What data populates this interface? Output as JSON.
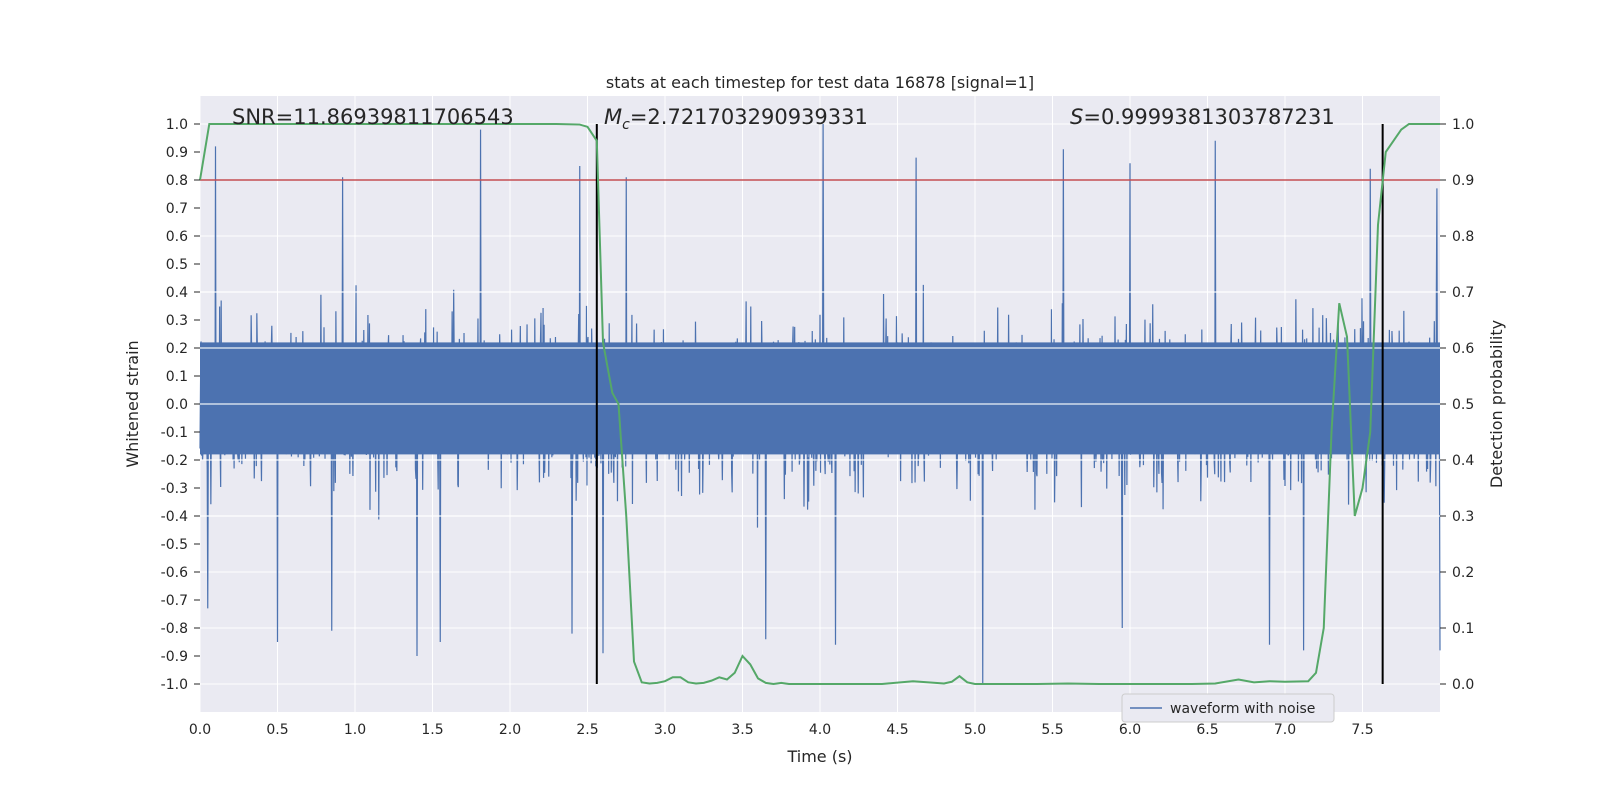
{
  "chart_data": {
    "type": "line",
    "title": "stats at each timestep for test data 16878 [signal=1]",
    "xlabel": "Time (s)",
    "ylabel": "Whitened strain",
    "y2label": "Detection probability",
    "xlim": [
      0.0,
      8.0
    ],
    "ylim": [
      -1.1,
      1.1
    ],
    "y2lim": [
      -0.05,
      1.05
    ],
    "xticks": [
      "0.0",
      "0.5",
      "1.0",
      "1.5",
      "2.0",
      "2.5",
      "3.0",
      "3.5",
      "4.0",
      "4.5",
      "5.0",
      "5.5",
      "6.0",
      "6.5",
      "7.0",
      "7.5"
    ],
    "yticks": [
      "-1.0",
      "-0.9",
      "-0.8",
      "-0.7",
      "-0.6",
      "-0.5",
      "-0.4",
      "-0.3",
      "-0.2",
      "-0.1",
      "0.0",
      "0.1",
      "0.2",
      "0.3",
      "0.4",
      "0.5",
      "0.6",
      "0.7",
      "0.8",
      "0.9",
      "1.0"
    ],
    "y2ticks": [
      "0.0",
      "0.1",
      "0.2",
      "0.3",
      "0.4",
      "0.5",
      "0.6",
      "0.7",
      "0.8",
      "0.9",
      "1.0"
    ],
    "grid": true,
    "legend_position": "lower-right",
    "annotations": {
      "snr": "SNR=11.86939811706543",
      "mc_symbol": "M",
      "mc_sub": "c",
      "mc_value": "=2.721703290939331",
      "s_symbol": "S",
      "s_value": "=0.9999381303787231"
    },
    "threshold": {
      "y2": 0.9,
      "color": "#c44e52"
    },
    "vlines": [
      2.56,
      7.63
    ],
    "series": [
      {
        "name": "waveform with noise",
        "axis": "left",
        "color": "#4c72b0",
        "style": "dense noise, typical range ±0.4, peaks near ±1.0",
        "peaks": [
          [
            0.1,
            0.92
          ],
          [
            0.92,
            0.81
          ],
          [
            1.81,
            0.98
          ],
          [
            2.45,
            0.85
          ],
          [
            2.75,
            0.81
          ],
          [
            4.02,
            1.0
          ],
          [
            4.62,
            0.88
          ],
          [
            5.57,
            0.91
          ],
          [
            6.0,
            0.86
          ],
          [
            6.55,
            0.94
          ],
          [
            7.55,
            0.84
          ],
          [
            7.98,
            0.77
          ],
          [
            0.05,
            -0.73
          ],
          [
            0.5,
            -0.85
          ],
          [
            0.85,
            -0.81
          ],
          [
            1.4,
            -0.9
          ],
          [
            1.55,
            -0.85
          ],
          [
            2.4,
            -0.82
          ],
          [
            2.6,
            -0.89
          ],
          [
            3.65,
            -0.84
          ],
          [
            4.1,
            -0.86
          ],
          [
            5.05,
            -1.0
          ],
          [
            5.95,
            -0.8
          ],
          [
            6.9,
            -0.86
          ],
          [
            7.12,
            -0.88
          ]
        ]
      },
      {
        "name": "Detection probability",
        "axis": "right",
        "color": "#55a868",
        "x": [
          0.0,
          0.06,
          0.12,
          0.5,
          1.0,
          1.5,
          2.0,
          2.3,
          2.45,
          2.5,
          2.56,
          2.6,
          2.66,
          2.7,
          2.75,
          2.8,
          2.85,
          2.9,
          2.95,
          3.0,
          3.05,
          3.1,
          3.15,
          3.2,
          3.25,
          3.3,
          3.35,
          3.4,
          3.45,
          3.5,
          3.55,
          3.6,
          3.65,
          3.7,
          3.75,
          3.8,
          3.85,
          3.9,
          4.0,
          4.2,
          4.4,
          4.6,
          4.7,
          4.8,
          4.85,
          4.9,
          4.95,
          5.0,
          5.05,
          5.2,
          5.4,
          5.6,
          5.8,
          6.0,
          6.4,
          6.55,
          6.7,
          6.8,
          6.9,
          7.0,
          7.15,
          7.2,
          7.25,
          7.3,
          7.35,
          7.4,
          7.45,
          7.5,
          7.55,
          7.6,
          7.65,
          7.7,
          7.75,
          7.8,
          7.85,
          7.9,
          7.95,
          8.0
        ],
        "values": [
          0.9,
          1.0,
          1.0,
          1.0,
          1.0,
          1.0,
          1.0,
          1.0,
          0.999,
          0.995,
          0.97,
          0.61,
          0.52,
          0.5,
          0.3,
          0.04,
          0.003,
          0.001,
          0.002,
          0.005,
          0.012,
          0.012,
          0.003,
          0.001,
          0.002,
          0.006,
          0.012,
          0.008,
          0.02,
          0.05,
          0.035,
          0.01,
          0.002,
          0.0,
          0.002,
          0.0,
          0.0,
          0.0,
          0.0,
          0.0,
          0.0,
          0.005,
          0.003,
          0.001,
          0.004,
          0.014,
          0.003,
          0.0,
          0.0,
          0.0,
          0.0,
          0.001,
          0.0,
          0.0,
          0.0,
          0.001,
          0.008,
          0.003,
          0.005,
          0.004,
          0.005,
          0.02,
          0.1,
          0.45,
          0.68,
          0.62,
          0.3,
          0.35,
          0.45,
          0.82,
          0.95,
          0.97,
          0.99,
          1.0,
          1.0,
          1.0,
          1.0,
          1.0
        ]
      }
    ]
  }
}
